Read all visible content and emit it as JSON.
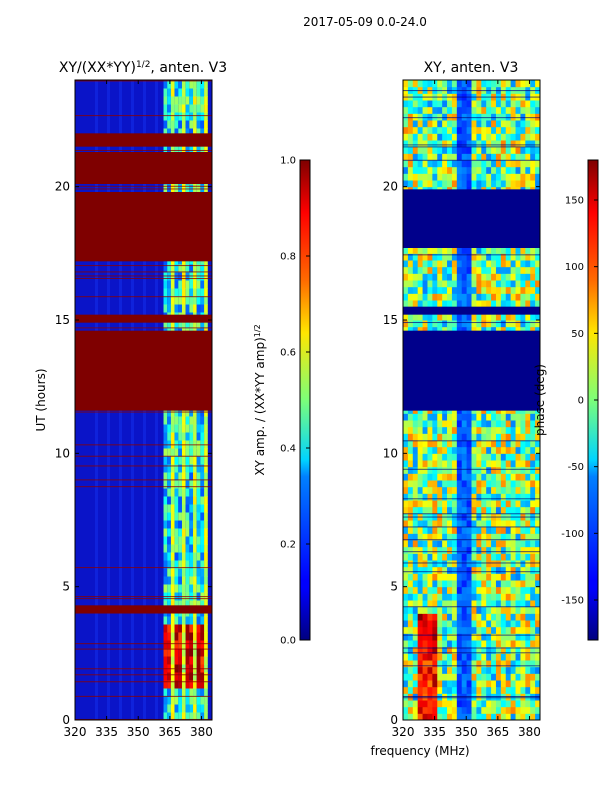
{
  "suptitle": "2017-05-09 0.0-24.0",
  "chart_data": [
    {
      "type": "heatmap",
      "title": "XY/(XX*YY)",
      "title_exp": "1/2",
      "title_suffix": ", anten. V3",
      "xlabel": "",
      "ylabel": "UT (hours)",
      "xlim": [
        320,
        385
      ],
      "ylim": [
        0,
        24
      ],
      "xticks": [
        320,
        335,
        350,
        365,
        380
      ],
      "yticks": [
        0,
        5,
        10,
        15,
        20
      ],
      "saturated_bands_hours": [
        [
          4.0,
          4.3
        ],
        [
          11.6,
          14.6
        ],
        [
          14.9,
          15.2
        ],
        [
          17.2,
          19.8
        ],
        [
          20.1,
          21.3
        ],
        [
          21.5,
          22.0
        ]
      ],
      "grid": false
    },
    {
      "type": "colorbar",
      "label": "XY amp. / (XX*YY amp)",
      "label_exp": "1/2",
      "range": [
        0.0,
        1.0
      ],
      "ticks": [
        "0.0",
        "0.2",
        "0.4",
        "0.6",
        "0.8",
        "1.0"
      ],
      "tick_values": [
        0.0,
        0.2,
        0.4,
        0.6,
        0.8,
        1.0
      ]
    },
    {
      "type": "heatmap",
      "title": "XY, anten. V3",
      "xlabel": "frequency (MHz)",
      "ylabel": "",
      "xlim": [
        320,
        385
      ],
      "ylim": [
        0,
        24
      ],
      "xticks": [
        320,
        335,
        350,
        365,
        380
      ],
      "yticks": [
        0,
        5,
        10,
        15,
        20
      ],
      "saturated_bands_hours": [
        [
          11.6,
          14.6
        ],
        [
          17.7,
          19.9
        ],
        [
          15.2,
          15.5
        ]
      ],
      "grid": false
    },
    {
      "type": "colorbar",
      "label": "phase (deg)",
      "range": [
        -180,
        180
      ],
      "ticks": [
        "-150",
        "-100",
        "-50",
        "0",
        "50",
        "100",
        "150"
      ],
      "tick_values": [
        -150,
        -100,
        -50,
        0,
        50,
        100,
        150
      ]
    }
  ]
}
